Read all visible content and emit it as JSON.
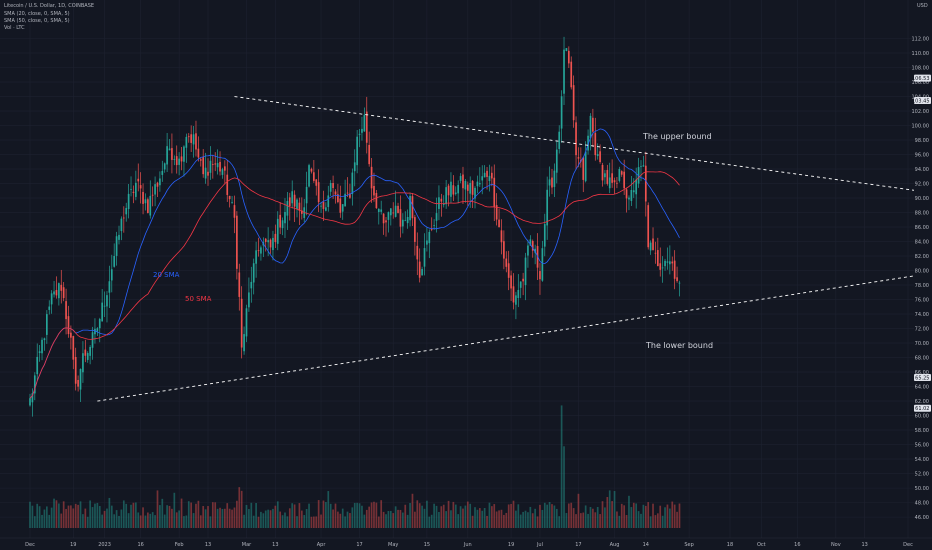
{
  "header": {
    "title": "Litecoin / U.S. Dollar, 1D, COINBASE",
    "sma20": "SMA (20, close, 0, SMA, 5)",
    "sma50": "SMA (50, close, 0, SMA, 5)",
    "vol": "Vol · LTC"
  },
  "currency": "USD",
  "annotations": {
    "upper_bound": "The upper bound",
    "lower_bound": "The lower bound",
    "sma20_label": "20 SMA",
    "sma50_label": "50 SMA"
  },
  "colors": {
    "background": "#131722",
    "bull": "#26a69a",
    "bear": "#ef5350",
    "sma20": "#2962ff",
    "sma50": "#f23645",
    "trendline": "#ffffff",
    "grid": "#1e2230"
  },
  "chart_data": {
    "type": "candlestick",
    "y_ticks": [
      112,
      110,
      108,
      106,
      104,
      102,
      100,
      98,
      96,
      94,
      92,
      90,
      88,
      86,
      84,
      82,
      80,
      78,
      76,
      74,
      72,
      70,
      68,
      66,
      64,
      62,
      60,
      58,
      56,
      54,
      52,
      50,
      48,
      46
    ],
    "ylim": [
      44.5,
      114
    ],
    "x_ticks": [
      {
        "label": "Dec",
        "day": 0
      },
      {
        "label": "19",
        "day": 18
      },
      {
        "label": "2023",
        "day": 31
      },
      {
        "label": "16",
        "day": 46
      },
      {
        "label": "Feb",
        "day": 62
      },
      {
        "label": "13",
        "day": 74
      },
      {
        "label": "Mar",
        "day": 90
      },
      {
        "label": "13",
        "day": 102
      },
      {
        "label": "Apr",
        "day": 121
      },
      {
        "label": "17",
        "day": 137
      },
      {
        "label": "May",
        "day": 151
      },
      {
        "label": "15",
        "day": 165
      },
      {
        "label": "Jun",
        "day": 182
      },
      {
        "label": "19",
        "day": 200
      },
      {
        "label": "Jul",
        "day": 212
      },
      {
        "label": "17",
        "day": 228
      },
      {
        "label": "Aug",
        "day": 243
      },
      {
        "label": "14",
        "day": 256
      },
      {
        "label": "Sep",
        "day": 274
      },
      {
        "label": "18",
        "day": 291
      },
      {
        "label": "Oct",
        "day": 304
      },
      {
        "label": "16",
        "day": 319
      },
      {
        "label": "Nov",
        "day": 335
      },
      {
        "label": "13",
        "day": 347
      },
      {
        "label": "Dec",
        "day": 365
      }
    ],
    "price_tags": [
      {
        "value": 106.53,
        "label": "106.53",
        "style": "light"
      },
      {
        "value": 103.45,
        "label": "103.45",
        "style": "light"
      },
      {
        "value": 65.25,
        "label": "65.25",
        "style": "light"
      },
      {
        "value": 61.02,
        "label": "61.02",
        "style": "light"
      }
    ],
    "close_anchors": [
      [
        0,
        62
      ],
      [
        5,
        70
      ],
      [
        9,
        76
      ],
      [
        13,
        78
      ],
      [
        17,
        70
      ],
      [
        19,
        63.5
      ],
      [
        22,
        68
      ],
      [
        27,
        71
      ],
      [
        31,
        76
      ],
      [
        35,
        82
      ],
      [
        39,
        88
      ],
      [
        44,
        92
      ],
      [
        49,
        89
      ],
      [
        54,
        93
      ],
      [
        58,
        97
      ],
      [
        62,
        95
      ],
      [
        65,
        99
      ],
      [
        68,
        98
      ],
      [
        72,
        93
      ],
      [
        75,
        95
      ],
      [
        80,
        94
      ],
      [
        85,
        87
      ],
      [
        87,
        76
      ],
      [
        88,
        69
      ],
      [
        92,
        79
      ],
      [
        96,
        84
      ],
      [
        100,
        83
      ],
      [
        104,
        87
      ],
      [
        109,
        90
      ],
      [
        113,
        88
      ],
      [
        116,
        94
      ],
      [
        121,
        88
      ],
      [
        125,
        92
      ],
      [
        129,
        88
      ],
      [
        133,
        91
      ],
      [
        136,
        98
      ],
      [
        139,
        101
      ],
      [
        142,
        92
      ],
      [
        147,
        86
      ],
      [
        152,
        89
      ],
      [
        155,
        86
      ],
      [
        158,
        90
      ],
      [
        162,
        80
      ],
      [
        167,
        86
      ],
      [
        171,
        90
      ],
      [
        175,
        91
      ],
      [
        180,
        92
      ],
      [
        184,
        91
      ],
      [
        187,
        92
      ],
      [
        191,
        94
      ],
      [
        194,
        88
      ],
      [
        198,
        80
      ],
      [
        201,
        76
      ],
      [
        205,
        79
      ],
      [
        208,
        84
      ],
      [
        212,
        80
      ],
      [
        215,
        90
      ],
      [
        218,
        94
      ],
      [
        221,
        103
      ],
      [
        222,
        111
      ],
      [
        224,
        108
      ],
      [
        227,
        96
      ],
      [
        230,
        93
      ],
      [
        233,
        101
      ],
      [
        236,
        95
      ],
      [
        239,
        93
      ],
      [
        243,
        91
      ],
      [
        246,
        94
      ],
      [
        249,
        89
      ],
      [
        252,
        93
      ],
      [
        255,
        94
      ],
      [
        257,
        84
      ],
      [
        259,
        82
      ],
      [
        262,
        81
      ],
      [
        264,
        82
      ],
      [
        267,
        81
      ],
      [
        270,
        78
      ]
    ],
    "volume_max": 70,
    "volume_spikes": [
      {
        "day": 221,
        "value": 66
      },
      {
        "day": 222,
        "value": 44
      },
      {
        "day": 87,
        "value": 22
      },
      {
        "day": 88,
        "value": 20
      },
      {
        "day": 19,
        "value": 13
      },
      {
        "day": 1,
        "value": 12
      }
    ],
    "volume_base": 6,
    "trendlines": [
      {
        "name": "upper-bound",
        "from": {
          "day": 85,
          "price": 104
        },
        "to": {
          "day": 380,
          "price": 90.5
        }
      },
      {
        "name": "lower-bound",
        "from": {
          "day": 28,
          "price": 62
        },
        "to": {
          "day": 380,
          "price": 79.9
        }
      }
    ],
    "sma_periods": [
      20,
      50
    ],
    "last_day": 270,
    "grid": true
  }
}
